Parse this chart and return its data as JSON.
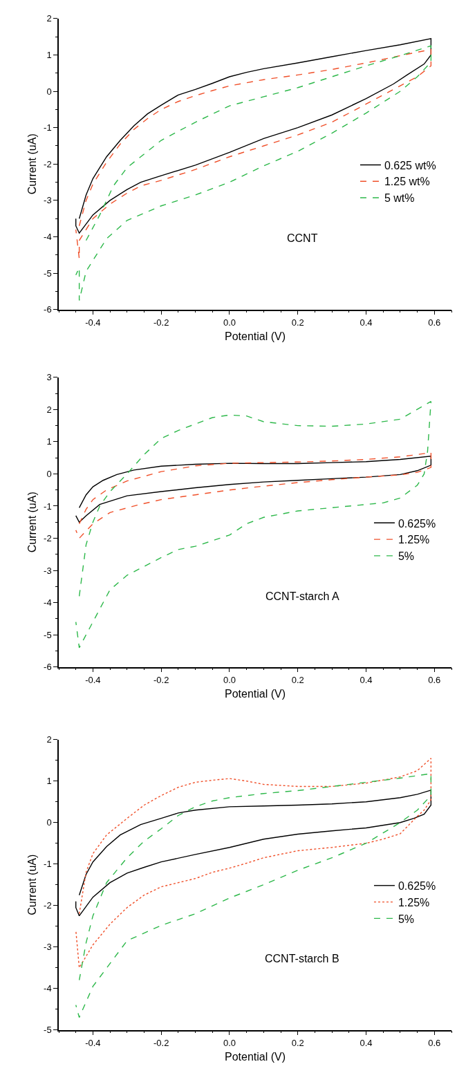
{
  "chart_data": [
    {
      "type": "line",
      "xlabel": "Potential (V)",
      "ylabel": "Current (uA)",
      "annotations": [
        "CCNT"
      ],
      "legend": "right",
      "xlim": [
        -0.5,
        0.65
      ],
      "xticks": [
        {
          "value": -0.4,
          "label": "-0.4"
        },
        {
          "value": -0.2,
          "label": "-0.2"
        },
        {
          "value": 0,
          "label": "0.0"
        },
        {
          "value": 0.2,
          "label": "0.2"
        },
        {
          "value": 0.4,
          "label": "0.4"
        },
        {
          "value": 0.6,
          "label": "0.6"
        }
      ],
      "ylim": [
        -6,
        2
      ],
      "yticks": [
        -6,
        -5,
        -4,
        -3,
        -2,
        -1,
        0,
        1,
        2
      ],
      "series": [
        {
          "name": "0.625 wt%",
          "color": "#000000",
          "line_style": "solid",
          "x": [
            -0.44,
            -0.42,
            -0.4,
            -0.36,
            -0.32,
            -0.28,
            -0.24,
            -0.2,
            -0.15,
            -0.1,
            -0.05,
            0,
            0.05,
            0.1,
            0.2,
            0.3,
            0.4,
            0.5,
            0.59,
            0.59,
            0.57,
            0.52,
            0.48,
            0.4,
            0.3,
            0.2,
            0.1,
            0,
            -0.1,
            -0.2,
            -0.26,
            -0.3,
            -0.35,
            -0.4,
            -0.44,
            -0.45,
            -0.45
          ],
          "values": [
            -3.5,
            -2.85,
            -2.4,
            -1.8,
            -1.35,
            -0.95,
            -0.62,
            -0.38,
            -0.1,
            0.05,
            0.22,
            0.4,
            0.52,
            0.62,
            0.78,
            0.95,
            1.12,
            1.28,
            1.45,
            1.0,
            0.75,
            0.45,
            0.2,
            -0.2,
            -0.65,
            -1.0,
            -1.3,
            -1.68,
            -2.03,
            -2.32,
            -2.5,
            -2.7,
            -3.0,
            -3.4,
            -3.9,
            -3.7,
            -3.5
          ]
        },
        {
          "name": "1.25 wt%",
          "color": "#f0502a",
          "line_style": "dashed",
          "x": [
            -0.44,
            -0.42,
            -0.4,
            -0.36,
            -0.32,
            -0.28,
            -0.24,
            -0.2,
            -0.15,
            -0.1,
            -0.05,
            0,
            0.1,
            0.2,
            0.3,
            0.4,
            0.5,
            0.59,
            0.59,
            0.55,
            0.5,
            0.45,
            0.4,
            0.3,
            0.2,
            0.1,
            0,
            -0.1,
            -0.2,
            -0.26,
            -0.3,
            -0.35,
            -0.4,
            -0.44,
            -0.44,
            -0.45
          ],
          "values": [
            -3.7,
            -3.0,
            -2.55,
            -1.95,
            -1.45,
            -1.05,
            -0.75,
            -0.5,
            -0.28,
            -0.12,
            0.02,
            0.15,
            0.32,
            0.45,
            0.6,
            0.78,
            0.98,
            1.15,
            0.7,
            0.4,
            0.15,
            -0.1,
            -0.35,
            -0.85,
            -1.2,
            -1.5,
            -1.8,
            -2.15,
            -2.45,
            -2.6,
            -2.8,
            -3.1,
            -3.5,
            -4.1,
            -4.6,
            -3.8
          ]
        },
        {
          "name": "5 wt%",
          "color": "#2db84a",
          "line_style": "dashed",
          "x": [
            -0.42,
            -0.38,
            -0.34,
            -0.3,
            -0.24,
            -0.2,
            -0.1,
            0,
            0.1,
            0.2,
            0.3,
            0.4,
            0.5,
            0.59,
            0.59,
            0.55,
            0.5,
            0.4,
            0.3,
            0.2,
            0.1,
            0,
            -0.1,
            -0.2,
            -0.3,
            -0.36,
            -0.42,
            -0.44,
            -0.44,
            -0.45
          ],
          "values": [
            -4.1,
            -3.4,
            -2.6,
            -2.1,
            -1.65,
            -1.35,
            -0.85,
            -0.4,
            -0.15,
            0.1,
            0.4,
            0.7,
            0.98,
            1.25,
            0.8,
            0.4,
            0.0,
            -0.6,
            -1.15,
            -1.65,
            -2.05,
            -2.5,
            -2.85,
            -3.15,
            -3.55,
            -4.05,
            -4.95,
            -5.75,
            -4.85,
            -5.05
          ]
        }
      ]
    },
    {
      "type": "line",
      "xlabel": "Potential (V)",
      "ylabel": "Current (uA)",
      "annotations": [
        "CCNT-starch A"
      ],
      "legend": "right",
      "xlim": [
        -0.5,
        0.65
      ],
      "xticks": [
        {
          "value": -0.4,
          "label": "-0.4"
        },
        {
          "value": -0.2,
          "label": "-0.2"
        },
        {
          "value": 0,
          "label": "0.0"
        },
        {
          "value": 0.2,
          "label": "0.2"
        },
        {
          "value": 0.4,
          "label": "0.4"
        },
        {
          "value": 0.6,
          "label": "0.6"
        }
      ],
      "ylim": [
        -6,
        3
      ],
      "yticks": [
        -6,
        -5,
        -4,
        -3,
        -2,
        -1,
        0,
        1,
        2,
        3
      ],
      "series": [
        {
          "name": "0.625%",
          "color": "#000000",
          "line_style": "solid",
          "x": [
            -0.44,
            -0.42,
            -0.4,
            -0.37,
            -0.33,
            -0.28,
            -0.2,
            -0.1,
            0,
            0.1,
            0.2,
            0.3,
            0.4,
            0.5,
            0.59,
            0.59,
            0.55,
            0.5,
            0.4,
            0.3,
            0.2,
            0.1,
            0,
            -0.1,
            -0.2,
            -0.3,
            -0.38,
            -0.42,
            -0.44,
            -0.45
          ],
          "values": [
            -1.05,
            -0.65,
            -0.4,
            -0.2,
            -0.02,
            0.12,
            0.24,
            0.3,
            0.33,
            0.32,
            0.32,
            0.35,
            0.38,
            0.45,
            0.55,
            0.27,
            0.1,
            -0.02,
            -0.1,
            -0.15,
            -0.2,
            -0.25,
            -0.33,
            -0.43,
            -0.55,
            -0.68,
            -0.95,
            -1.3,
            -1.5,
            -1.3
          ]
        },
        {
          "name": "1.25%",
          "color": "#f0502a",
          "line_style": "dashed",
          "x": [
            -0.44,
            -0.42,
            -0.4,
            -0.36,
            -0.3,
            -0.2,
            -0.1,
            0,
            0.1,
            0.2,
            0.3,
            0.4,
            0.5,
            0.59,
            0.59,
            0.55,
            0.5,
            0.4,
            0.3,
            0.2,
            0.1,
            0,
            -0.1,
            -0.2,
            -0.27,
            -0.35,
            -0.4,
            -0.44,
            -0.45
          ],
          "values": [
            -1.55,
            -1.1,
            -0.8,
            -0.5,
            -0.22,
            0.07,
            0.25,
            0.33,
            0.35,
            0.37,
            0.4,
            0.45,
            0.53,
            0.66,
            0.2,
            0.05,
            -0.03,
            -0.1,
            -0.18,
            -0.27,
            -0.38,
            -0.5,
            -0.65,
            -0.8,
            -0.97,
            -1.2,
            -1.55,
            -2.0,
            -1.75
          ]
        },
        {
          "name": "5%",
          "color": "#2db84a",
          "line_style": "dashed",
          "x": [
            -0.44,
            -0.42,
            -0.4,
            -0.38,
            -0.35,
            -0.3,
            -0.25,
            -0.2,
            -0.15,
            -0.1,
            -0.05,
            0,
            0.05,
            0.1,
            0.2,
            0.3,
            0.4,
            0.5,
            0.59,
            0.58,
            0.57,
            0.55,
            0.5,
            0.45,
            0.4,
            0.3,
            0.2,
            0.1,
            0.05,
            0,
            -0.1,
            -0.15,
            -0.2,
            -0.3,
            -0.35,
            -0.4,
            -0.44,
            -0.45
          ],
          "values": [
            -3.8,
            -2.2,
            -1.5,
            -1.0,
            -0.55,
            0.0,
            0.6,
            1.1,
            1.35,
            1.55,
            1.75,
            1.83,
            1.8,
            1.62,
            1.5,
            1.48,
            1.55,
            1.7,
            2.25,
            0.7,
            0.0,
            -0.35,
            -0.75,
            -0.9,
            -0.95,
            -1.05,
            -1.15,
            -1.35,
            -1.55,
            -1.9,
            -2.25,
            -2.35,
            -2.6,
            -3.15,
            -3.6,
            -4.6,
            -5.4,
            -4.6
          ]
        }
      ]
    },
    {
      "type": "line",
      "xlabel": "Potential (V)",
      "ylabel": "Current (uA)",
      "annotations": [
        "CCNT-starch B"
      ],
      "legend": "right",
      "xlim": [
        -0.5,
        0.65
      ],
      "xticks": [
        {
          "value": -0.4,
          "label": "-0.4"
        },
        {
          "value": -0.2,
          "label": "-0.2"
        },
        {
          "value": 0,
          "label": "0.0"
        },
        {
          "value": 0.2,
          "label": "0.2"
        },
        {
          "value": 0.4,
          "label": "0.4"
        },
        {
          "value": 0.6,
          "label": "0.6"
        }
      ],
      "ylim": [
        -5,
        2
      ],
      "yticks": [
        -5,
        -4,
        -3,
        -2,
        -1,
        0,
        1,
        2
      ],
      "series": [
        {
          "name": "0.625%",
          "color": "#000000",
          "line_style": "solid",
          "x": [
            -0.44,
            -0.42,
            -0.4,
            -0.36,
            -0.32,
            -0.26,
            -0.2,
            -0.15,
            -0.1,
            0,
            0.1,
            0.2,
            0.3,
            0.4,
            0.5,
            0.55,
            0.59,
            0.59,
            0.57,
            0.54,
            0.5,
            0.4,
            0.3,
            0.2,
            0.1,
            0,
            -0.1,
            -0.2,
            -0.25,
            -0.3,
            -0.35,
            -0.4,
            -0.44,
            -0.45,
            -0.45
          ],
          "values": [
            -1.75,
            -1.25,
            -0.95,
            -0.58,
            -0.3,
            -0.05,
            0.1,
            0.23,
            0.3,
            0.38,
            0.4,
            0.42,
            0.45,
            0.5,
            0.6,
            0.68,
            0.78,
            0.42,
            0.2,
            0.1,
            0.0,
            -0.13,
            -0.2,
            -0.28,
            -0.4,
            -0.6,
            -0.77,
            -0.95,
            -1.08,
            -1.22,
            -1.45,
            -1.8,
            -2.25,
            -2.05,
            -1.9
          ]
        },
        {
          "name": "1.25%",
          "color": "#f0502a",
          "line_style": "dotted",
          "x": [
            -0.44,
            -0.42,
            -0.4,
            -0.36,
            -0.3,
            -0.25,
            -0.2,
            -0.15,
            -0.1,
            -0.05,
            0,
            0.05,
            0.1,
            0.2,
            0.3,
            0.4,
            0.5,
            0.55,
            0.59,
            0.59,
            0.57,
            0.55,
            0.5,
            0.45,
            0.4,
            0.3,
            0.2,
            0.1,
            0.05,
            0,
            -0.05,
            -0.1,
            -0.15,
            -0.2,
            -0.25,
            -0.3,
            -0.35,
            -0.4,
            -0.44,
            -0.45
          ],
          "values": [
            -2.2,
            -1.2,
            -0.75,
            -0.3,
            0.1,
            0.42,
            0.65,
            0.85,
            0.97,
            1.02,
            1.06,
            1.0,
            0.92,
            0.87,
            0.87,
            0.95,
            1.1,
            1.25,
            1.55,
            0.55,
            0.3,
            0.15,
            -0.27,
            -0.4,
            -0.5,
            -0.6,
            -0.68,
            -0.85,
            -0.98,
            -1.1,
            -1.2,
            -1.35,
            -1.45,
            -1.55,
            -1.75,
            -2.05,
            -2.45,
            -2.95,
            -3.5,
            -2.6
          ]
        },
        {
          "name": "5%",
          "color": "#2db84a",
          "line_style": "dashed",
          "x": [
            -0.44,
            -0.42,
            -0.4,
            -0.36,
            -0.3,
            -0.25,
            -0.2,
            -0.15,
            -0.1,
            -0.05,
            0,
            0.1,
            0.2,
            0.3,
            0.4,
            0.5,
            0.59,
            0.59,
            0.55,
            0.5,
            0.4,
            0.3,
            0.2,
            0.1,
            0,
            -0.1,
            -0.2,
            -0.3,
            -0.4,
            -0.44,
            -0.45
          ],
          "values": [
            -3.8,
            -2.9,
            -2.25,
            -1.45,
            -0.85,
            -0.45,
            -0.15,
            0.17,
            0.38,
            0.52,
            0.6,
            0.7,
            0.77,
            0.87,
            0.97,
            1.07,
            1.18,
            0.65,
            0.3,
            0.0,
            -0.5,
            -0.85,
            -1.15,
            -1.5,
            -1.82,
            -2.2,
            -2.48,
            -2.85,
            -3.95,
            -4.7,
            -4.4
          ]
        }
      ]
    }
  ]
}
